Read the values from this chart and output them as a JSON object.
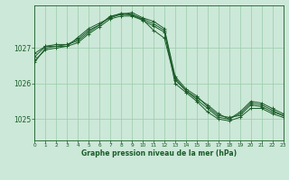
{
  "background_color": "#cce8d8",
  "grid_color": "#99ccaa",
  "line_color": "#1a5c28",
  "title": "Graphe pression niveau de la mer (hPa)",
  "xlim": [
    0,
    23
  ],
  "ylim": [
    1024.4,
    1028.2
  ],
  "yticks": [
    1025,
    1026,
    1027
  ],
  "xticks": [
    0,
    1,
    2,
    3,
    4,
    5,
    6,
    7,
    8,
    9,
    10,
    11,
    12,
    13,
    14,
    15,
    16,
    17,
    18,
    19,
    20,
    21,
    22,
    23
  ],
  "series": [
    {
      "x": [
        0,
        1,
        2,
        3,
        4,
        5,
        6,
        7,
        8,
        9,
        10,
        11,
        12,
        13,
        14,
        15,
        16,
        17,
        18,
        19,
        20,
        21,
        22,
        23
      ],
      "y": [
        1026.75,
        1027.05,
        1027.05,
        1027.05,
        1027.3,
        1027.55,
        1027.7,
        1027.85,
        1027.95,
        1028.0,
        1027.85,
        1027.75,
        1027.55,
        1026.2,
        1025.85,
        1025.65,
        1025.35,
        1025.1,
        1025.05,
        1025.1,
        1025.4,
        1025.35,
        1025.2,
        1025.1
      ]
    },
    {
      "x": [
        0,
        1,
        2,
        3,
        4,
        5,
        6,
        7,
        8,
        9,
        10,
        11,
        12,
        13,
        14,
        15,
        16,
        17,
        18,
        19,
        20,
        21,
        22,
        23
      ],
      "y": [
        1026.85,
        1027.05,
        1027.1,
        1027.1,
        1027.25,
        1027.5,
        1027.65,
        1027.88,
        1027.98,
        1027.95,
        1027.82,
        1027.68,
        1027.5,
        1026.15,
        1025.8,
        1025.6,
        1025.4,
        1025.15,
        1025.0,
        1025.15,
        1025.45,
        1025.4,
        1025.25,
        1025.1
      ]
    },
    {
      "x": [
        0,
        1,
        2,
        3,
        4,
        5,
        6,
        7,
        8,
        9,
        10,
        11,
        12,
        13,
        14,
        15,
        16,
        17,
        18,
        19,
        20,
        21,
        22,
        23
      ],
      "y": [
        1026.65,
        1026.95,
        1027.0,
        1027.05,
        1027.15,
        1027.4,
        1027.6,
        1027.82,
        1027.9,
        1027.9,
        1027.78,
        1027.62,
        1027.45,
        1026.0,
        1025.75,
        1025.5,
        1025.2,
        1025.0,
        1024.95,
        1025.05,
        1025.3,
        1025.3,
        1025.15,
        1025.05
      ]
    },
    {
      "x": [
        0,
        1,
        2,
        3,
        4,
        5,
        6,
        7,
        8,
        9,
        10,
        11,
        12,
        13,
        14,
        15,
        16,
        17,
        18,
        19,
        20,
        21,
        22,
        23
      ],
      "y": [
        1026.6,
        1027.0,
        1027.05,
        1027.1,
        1027.2,
        1027.45,
        1027.65,
        1027.9,
        1027.95,
        1027.93,
        1027.8,
        1027.5,
        1027.28,
        1026.1,
        1025.8,
        1025.55,
        1025.3,
        1025.05,
        1025.0,
        1025.2,
        1025.5,
        1025.45,
        1025.3,
        1025.15
      ]
    }
  ]
}
